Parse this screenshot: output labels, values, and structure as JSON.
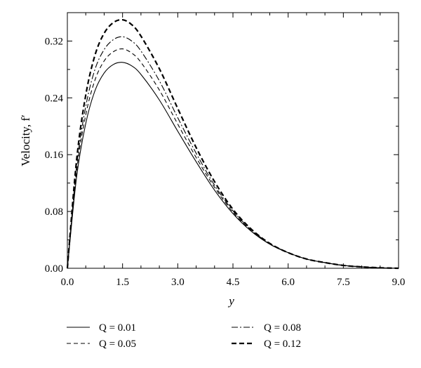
{
  "chart_data": {
    "type": "line",
    "title": "",
    "xlabel": "y",
    "ylabel": "Velocity, f′",
    "xlim": [
      0.0,
      9.0
    ],
    "ylim": [
      0.0,
      0.36
    ],
    "xticks": [
      "0.0",
      "1.5",
      "3.0",
      "4.5",
      "6.0",
      "7.5",
      "9.0"
    ],
    "yticks": [
      "0.00",
      "0.08",
      "0.16",
      "0.24",
      "0.32"
    ],
    "grid": false,
    "legend_position": "bottom",
    "series": [
      {
        "name": "Q = 0.01",
        "style": "solid",
        "color": "#000000",
        "x": [
          0.0,
          0.25,
          0.5,
          0.75,
          1.0,
          1.25,
          1.5,
          1.75,
          2.0,
          2.5,
          3.0,
          3.5,
          4.0,
          4.5,
          5.0,
          5.5,
          6.0,
          6.5,
          7.0,
          7.5,
          8.0,
          8.5,
          9.0
        ],
        "y": [
          0.0,
          0.128,
          0.204,
          0.25,
          0.275,
          0.287,
          0.29,
          0.285,
          0.273,
          0.237,
          0.193,
          0.15,
          0.11,
          0.077,
          0.052,
          0.034,
          0.022,
          0.013,
          0.008,
          0.004,
          0.002,
          0.0007,
          0.0
        ]
      },
      {
        "name": "Q = 0.05",
        "style": "dashed",
        "color": "#000000",
        "x": [
          0.0,
          0.25,
          0.5,
          0.75,
          1.0,
          1.25,
          1.5,
          1.75,
          2.0,
          2.5,
          3.0,
          3.5,
          4.0,
          4.5,
          5.0,
          5.5,
          6.0,
          6.5,
          7.0,
          7.5,
          8.0,
          8.5,
          9.0
        ],
        "y": [
          0.0,
          0.136,
          0.216,
          0.265,
          0.292,
          0.305,
          0.309,
          0.303,
          0.29,
          0.251,
          0.203,
          0.156,
          0.114,
          0.079,
          0.053,
          0.034,
          0.022,
          0.013,
          0.008,
          0.004,
          0.002,
          0.0007,
          0.0
        ]
      },
      {
        "name": "Q = 0.08",
        "style": "dashdot",
        "color": "#000000",
        "x": [
          0.0,
          0.25,
          0.5,
          0.75,
          1.0,
          1.25,
          1.5,
          1.75,
          2.0,
          2.5,
          3.0,
          3.5,
          4.0,
          4.5,
          5.0,
          5.5,
          6.0,
          6.5,
          7.0,
          7.5,
          8.0,
          8.5,
          9.0
        ],
        "y": [
          0.0,
          0.143,
          0.228,
          0.28,
          0.308,
          0.322,
          0.326,
          0.32,
          0.306,
          0.264,
          0.212,
          0.162,
          0.117,
          0.081,
          0.054,
          0.035,
          0.022,
          0.013,
          0.008,
          0.004,
          0.002,
          0.0007,
          0.0
        ]
      },
      {
        "name": "Q = 0.12",
        "style": "bold-dashed",
        "color": "#000000",
        "x": [
          0.0,
          0.25,
          0.5,
          0.75,
          1.0,
          1.25,
          1.5,
          1.75,
          2.0,
          2.5,
          3.0,
          3.5,
          4.0,
          4.5,
          5.0,
          5.5,
          6.0,
          6.5,
          7.0,
          7.5,
          8.0,
          8.5,
          9.0
        ],
        "y": [
          0.0,
          0.152,
          0.244,
          0.3,
          0.331,
          0.346,
          0.35,
          0.343,
          0.327,
          0.281,
          0.225,
          0.17,
          0.122,
          0.083,
          0.055,
          0.035,
          0.022,
          0.013,
          0.008,
          0.004,
          0.002,
          0.0007,
          0.0
        ]
      }
    ]
  }
}
